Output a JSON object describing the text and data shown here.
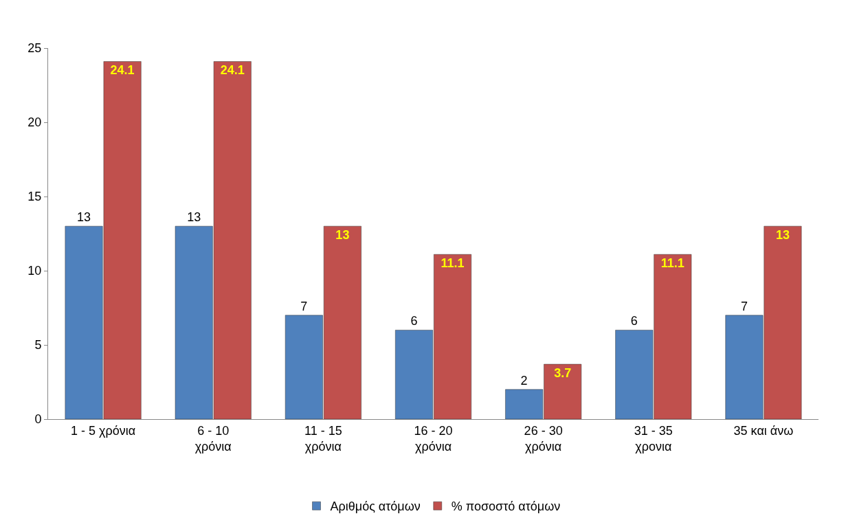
{
  "chart_data": {
    "type": "bar",
    "categories": [
      "1 - 5 χρόνια",
      "6 - 10\nχρόνια",
      "11 - 15\nχρόνια",
      "16 - 20\nχρόνια",
      "26 - 30\nχρόνια",
      "31 - 35\nχρονια",
      "35 και άνω"
    ],
    "series": [
      {
        "name": "Αριθμός ατόμων",
        "color": "#4f81bd",
        "values": [
          13,
          13,
          7,
          6,
          2,
          6,
          7
        ]
      },
      {
        "name": "% ποσοστό ατόμων",
        "color": "#c0504d",
        "values": [
          24.1,
          24.1,
          13,
          11.1,
          3.7,
          11.1,
          13
        ]
      }
    ],
    "ylim": [
      0,
      25
    ],
    "yticks": [
      0,
      5,
      10,
      15,
      20,
      25
    ],
    "legend": "bottom",
    "data_labels": true
  }
}
